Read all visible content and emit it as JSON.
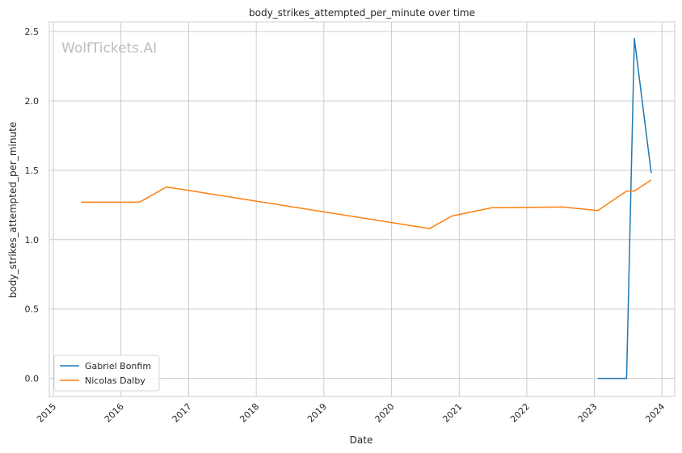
{
  "chart_data": {
    "type": "line",
    "title": "body_strikes_attempted_per_minute over time",
    "xlabel": "Date",
    "ylabel": "body_strikes_attempted_per_minute",
    "watermark": "WolfTickets.AI",
    "xlim": [
      "2014-12-10",
      "2024-03-10"
    ],
    "ylim": [
      -0.13,
      2.57
    ],
    "x_ticks": [
      "2015",
      "2016",
      "2017",
      "2018",
      "2019",
      "2020",
      "2021",
      "2022",
      "2023",
      "2024"
    ],
    "y_ticks": [
      "0.0",
      "0.5",
      "1.0",
      "1.5",
      "2.0",
      "2.5"
    ],
    "grid": true,
    "legend_position": "lower-left",
    "series": [
      {
        "name": "Gabriel Bonfim",
        "color": "#1f77b4",
        "x": [
          "2023-01-20",
          "2023-06-24",
          "2023-08-05",
          "2023-11-04"
        ],
        "y": [
          0.0,
          0.0,
          2.45,
          1.48
        ]
      },
      {
        "name": "Nicolas Dalby",
        "color": "#ff7f0e",
        "x": [
          "2015-05-30",
          "2016-04-10",
          "2016-09-03",
          "2020-07-25",
          "2020-11-21",
          "2021-06-26",
          "2022-07-16",
          "2023-01-20",
          "2023-06-24",
          "2023-08-05",
          "2023-11-04"
        ],
        "y": [
          1.27,
          1.27,
          1.38,
          1.08,
          1.17,
          1.23,
          1.235,
          1.21,
          1.35,
          1.35,
          1.43
        ]
      }
    ]
  }
}
